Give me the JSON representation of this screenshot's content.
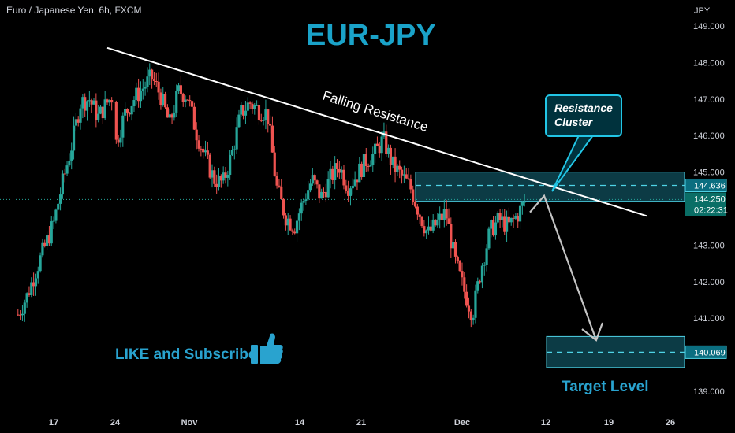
{
  "header": {
    "symbol": "Euro / Japanese Yen, 6h, FXCM",
    "axis_unit": "JPY"
  },
  "annotations": {
    "title": "EUR-JPY",
    "trendline_label": "Falling Resistance",
    "callout_line1": "Resistance",
    "callout_line2": "Cluster",
    "like_text": "LIKE and Subscribe",
    "target_text": "Target Level"
  },
  "colors": {
    "up": "#26a69a",
    "down": "#ef5350",
    "accent": "#1aa3c9",
    "zone_fill": "#0c3b45",
    "zone_border": "#4fd3e6"
  },
  "chart_data": {
    "type": "candlestick",
    "title": "EUR-JPY",
    "xlabel": "",
    "ylabel": "JPY",
    "ylim": [
      138.8,
      149.2
    ],
    "x_ticks": [
      "17",
      "24",
      "Nov",
      "14",
      "21",
      "Dec",
      "12",
      "19",
      "26"
    ],
    "y_ticks": [
      "149.000",
      "148.000",
      "147.000",
      "146.000",
      "145.000",
      "143.000",
      "142.000",
      "141.000",
      "139.000"
    ],
    "price_labels": [
      {
        "value": 144.636,
        "text": "144.636"
      },
      {
        "value": 144.25,
        "text": "144.250",
        "countdown": "02:22:31"
      },
      {
        "value": 140.069,
        "text": "140.069"
      }
    ],
    "resistance_zone": [
      144.2,
      145.0
    ],
    "target_zone": [
      139.65,
      140.5
    ],
    "falling_resistance": {
      "from": {
        "date": "Oct 24",
        "price": 148.4
      },
      "to": {
        "date": "Dec 22",
        "price": 143.8
      }
    },
    "projection": {
      "from_price": 144.35,
      "to_price": 140.4
    },
    "close_path": [
      [
        "Oct 13",
        141.1
      ],
      [
        "Oct 14",
        141.6
      ],
      [
        "Oct 15",
        142.3
      ],
      [
        "Oct 17",
        143.6
      ],
      [
        "Oct 18",
        144.7
      ],
      [
        "Oct 19",
        145.7
      ],
      [
        "Oct 20",
        146.9
      ],
      [
        "Oct 21",
        147.0
      ],
      [
        "Oct 22",
        146.5
      ],
      [
        "Oct 23",
        146.9
      ],
      [
        "Oct 24",
        147.2
      ],
      [
        "Oct 24",
        145.8
      ],
      [
        "Oct 25",
        146.6
      ],
      [
        "Oct 26",
        147.0
      ],
      [
        "Oct 27",
        147.3
      ],
      [
        "Oct 28",
        147.6
      ],
      [
        "Oct 29",
        147.1
      ],
      [
        "Oct 30",
        146.3
      ],
      [
        "Oct 31",
        147.2
      ],
      [
        "Nov 1",
        147.1
      ],
      [
        "Nov 2",
        146.1
      ],
      [
        "Nov 3",
        145.4
      ],
      [
        "Nov 4",
        144.8
      ],
      [
        "Nov 5",
        144.7
      ],
      [
        "Nov 6",
        145.5
      ],
      [
        "Nov 7",
        146.6
      ],
      [
        "Nov 8",
        146.9
      ],
      [
        "Nov 9",
        146.7
      ],
      [
        "Nov 10",
        146.6
      ],
      [
        "Nov 11",
        144.6
      ],
      [
        "Nov 12",
        143.8
      ],
      [
        "Nov 13",
        143.5
      ],
      [
        "Nov 14",
        144.2
      ],
      [
        "Nov 15",
        144.8
      ],
      [
        "Nov 16",
        144.3
      ],
      [
        "Nov 17",
        144.8
      ],
      [
        "Nov 18",
        145.2
      ],
      [
        "Nov 19",
        144.6
      ],
      [
        "Nov 20",
        144.9
      ],
      [
        "Nov 21",
        145.3
      ],
      [
        "Nov 22",
        145.5
      ],
      [
        "Nov 23",
        145.9
      ],
      [
        "Nov 24",
        145.2
      ],
      [
        "Nov 25",
        144.9
      ],
      [
        "Nov 26",
        144.6
      ],
      [
        "Nov 27",
        143.9
      ],
      [
        "Nov 28",
        143.3
      ],
      [
        "Nov 29",
        143.6
      ],
      [
        "Nov 30",
        143.9
      ],
      [
        "Dec 1",
        142.6
      ],
      [
        "Dec 2",
        141.8
      ],
      [
        "Dec 3",
        141.1
      ],
      [
        "Dec 4",
        142.4
      ],
      [
        "Dec 5",
        143.4
      ],
      [
        "Dec 6",
        143.7
      ],
      [
        "Dec 7",
        143.5
      ],
      [
        "Dec 8",
        143.8
      ],
      [
        "Dec 9",
        144.25
      ]
    ]
  }
}
